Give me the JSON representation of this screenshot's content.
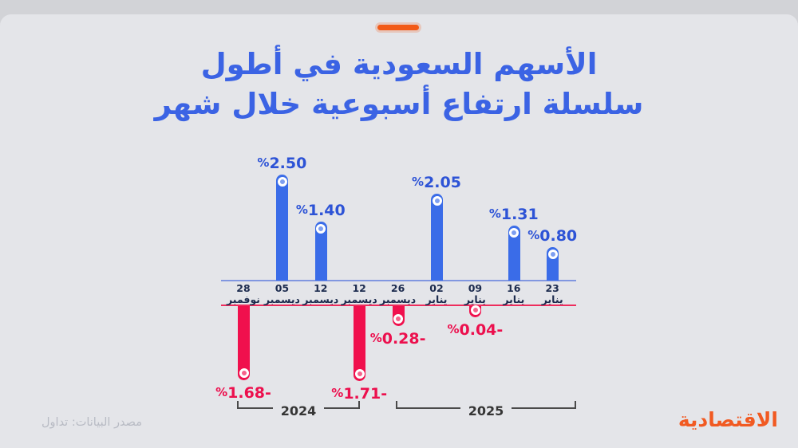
{
  "page": {
    "background_color": "#d2d3d7",
    "card_color": "#e4e5e9"
  },
  "header": {
    "accent_dash_color": "#f25a17",
    "title_line1": "الأسهم السعودية في أطول",
    "title_line2": "سلسلة ارتفاع أسبوعية خلال شهر",
    "title_color": "#3b63e4"
  },
  "chart_data": {
    "type": "bar",
    "title": "الأسهم السعودية في أطول سلسلة ارتفاع أسبوعية خلال شهر",
    "unit": "%",
    "baseline": 0,
    "ylim": [
      -2,
      3
    ],
    "grid": false,
    "categories": [
      "28 نوفمبر",
      "05 ديسمبر",
      "12 ديسمبر",
      "12 ديسمبر",
      "26 ديسمبر",
      "02 يناير",
      "09 يناير",
      "16 يناير",
      "23 يناير"
    ],
    "categories_split": [
      {
        "day": "28",
        "month": "نوفمبر"
      },
      {
        "day": "05",
        "month": "ديسمبر"
      },
      {
        "day": "12",
        "month": "ديسمبر"
      },
      {
        "day": "12",
        "month": "ديسمبر"
      },
      {
        "day": "26",
        "month": "ديسمبر"
      },
      {
        "day": "02",
        "month": "يناير"
      },
      {
        "day": "09",
        "month": "يناير"
      },
      {
        "day": "16",
        "month": "يناير"
      },
      {
        "day": "23",
        "month": "يناير"
      }
    ],
    "values": [
      -1.68,
      2.5,
      1.4,
      -1.71,
      -0.28,
      2.05,
      -0.04,
      1.31,
      0.8
    ],
    "point_labels": [
      "%1.68-",
      "%2.50",
      "%1.40",
      "%1.71-",
      "%0.28-",
      "%2.05",
      "%0.04-",
      "%1.31",
      "%0.80"
    ],
    "positive_color": "#3a6ce8",
    "negative_color": "#f0104d",
    "positive_label_color": "#2d53d6",
    "negative_label_color": "#ec0f4d",
    "axis_top_line_color": "#8197e0",
    "axis_bottom_line_color": "#ee2d5d",
    "date_label_color": "#1c2b4e",
    "year_groups": [
      {
        "label": "2024",
        "from": 0,
        "to": 3
      },
      {
        "label": "2025",
        "from": 4,
        "to": 8
      }
    ]
  },
  "footer": {
    "source": "مصدر البيانات: تداول",
    "logo": "الاقتصادية",
    "logo_color": "#f15a22"
  }
}
